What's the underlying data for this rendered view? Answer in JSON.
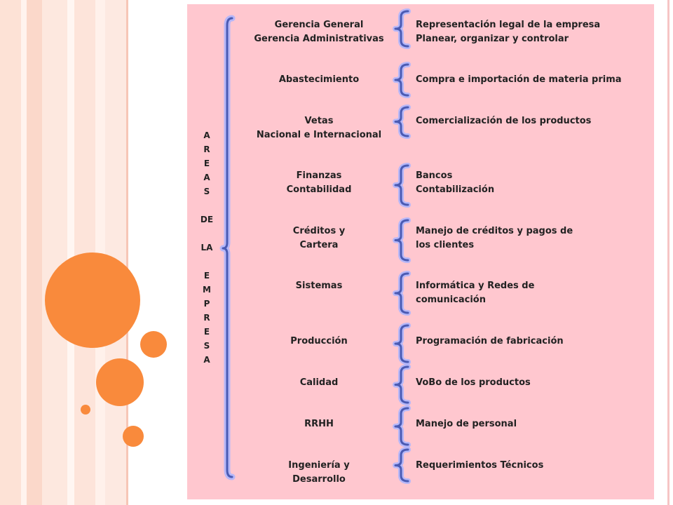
{
  "vertical_label": [
    "A",
    "R",
    "E",
    "A",
    "S",
    "",
    "DE",
    "",
    "LA",
    "",
    "E",
    "M",
    "P",
    "R",
    "E",
    "S",
    "A"
  ],
  "rows": [
    {
      "area": [
        "Gerencia General",
        "Gerencia Administrativas"
      ],
      "functions": [
        "Representación  legal de la empresa",
        "Planear, organizar y controlar"
      ]
    },
    {
      "area": [
        "Abastecimiento"
      ],
      "functions": [
        "Compra e importación de  materia prima"
      ]
    },
    {
      "area": [
        "Vetas",
        "Nacional e Internacional"
      ],
      "functions": [
        "Comercialización de los productos"
      ]
    },
    {
      "area": [
        "Finanzas",
        "Contabilidad"
      ],
      "functions": [
        "Bancos",
        "Contabilización"
      ]
    },
    {
      "area": [
        "Créditos y",
        "Cartera"
      ],
      "functions": [
        "Manejo de créditos y pagos de",
        "los clientes"
      ]
    },
    {
      "area": [
        "Sistemas"
      ],
      "functions": [
        "Informática y Redes de",
        "comunicación"
      ]
    },
    {
      "area": [
        "Producción"
      ],
      "functions": [
        "Programación de fabricación"
      ]
    },
    {
      "area": [
        "Calidad"
      ],
      "functions": [
        "VoBo de los productos"
      ]
    },
    {
      "area": [
        "RRHH"
      ],
      "functions": [
        "Manejo de personal"
      ]
    },
    {
      "area": [
        "Ingeniería y",
        "Desarrollo"
      ],
      "functions": [
        "Requerimientos Técnicos"
      ]
    }
  ],
  "colors": {
    "panel_background": "#ffc7cf",
    "bracket_stroke": "#4b5bb4",
    "bracket_glow": "#a9b4ff",
    "circle_fill": "#f98a3c"
  }
}
